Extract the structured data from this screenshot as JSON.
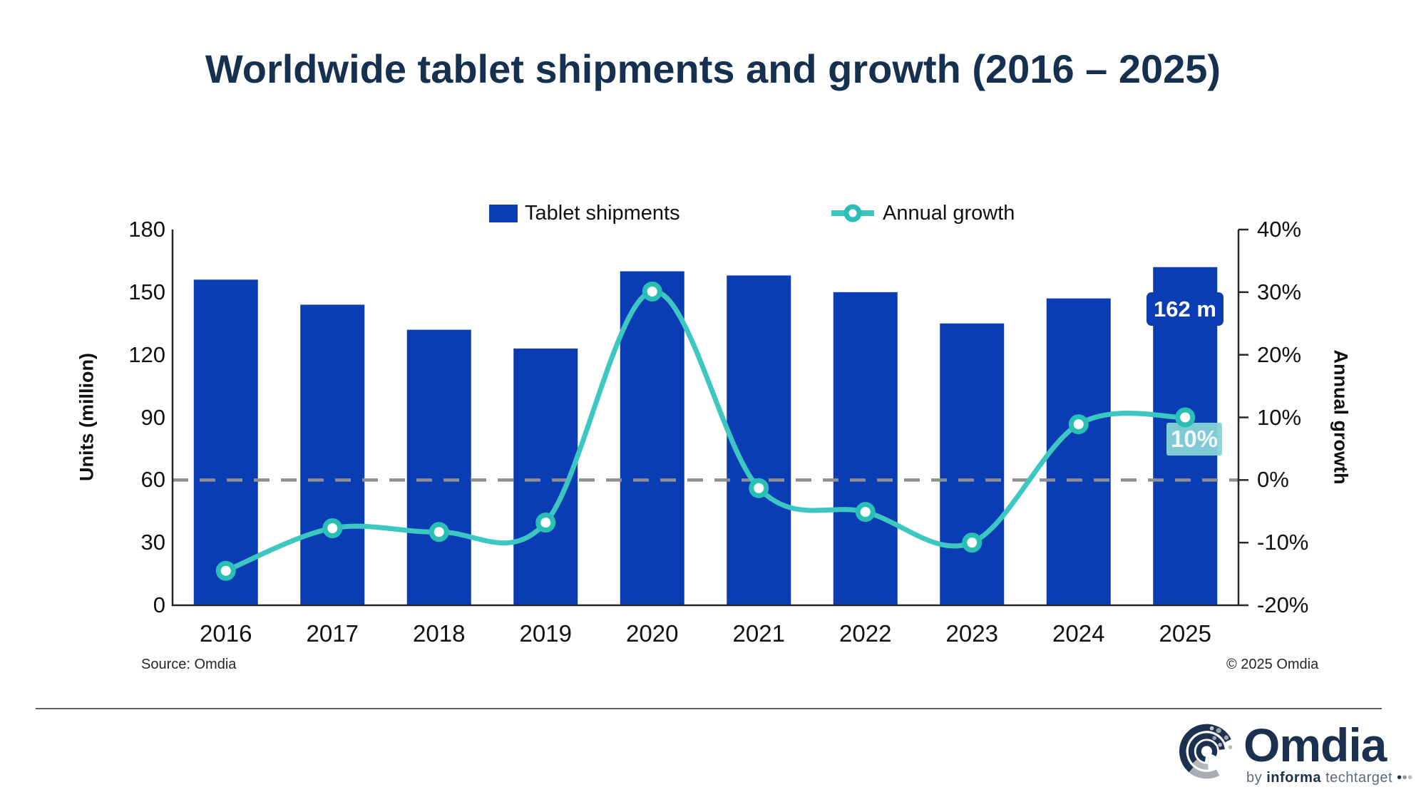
{
  "title": "Worldwide tablet shipments and growth (2016 – 2025)",
  "legend": {
    "shipments_label": "Tablet shipments",
    "growth_label": "Annual growth"
  },
  "axes": {
    "left_title": "Units (million)",
    "right_title": "Annual growth",
    "left_ticks": [
      "180",
      "150",
      "120",
      "90",
      "60",
      "30",
      "0"
    ],
    "right_ticks": [
      "40%",
      "30%",
      "20%",
      "10%",
      "0%",
      "-10%",
      "-20%"
    ],
    "x_ticks": [
      "2016",
      "2017",
      "2018",
      "2019",
      "2020",
      "2021",
      "2022",
      "2023",
      "2024",
      "2025"
    ]
  },
  "chart_data": {
    "type": "combo",
    "categories": [
      "2016",
      "2017",
      "2018",
      "2019",
      "2020",
      "2021",
      "2022",
      "2023",
      "2024",
      "2025"
    ],
    "series": [
      {
        "name": "Tablet shipments",
        "type": "bar",
        "axis": "left",
        "unit": "million units",
        "color": "#0A3DB4",
        "values": [
          156,
          144,
          132,
          123,
          160,
          158,
          150,
          135,
          147,
          162
        ]
      },
      {
        "name": "Annual growth",
        "type": "line",
        "axis": "right",
        "unit": "%",
        "color": "#3CC7C0",
        "marker_ring": "#29BEB6",
        "values": [
          -14.5,
          -7.7,
          -8.3,
          -6.8,
          30.1,
          -1.3,
          -5.1,
          -10.0,
          8.9,
          10.0
        ]
      }
    ],
    "left_axis": {
      "title": "Units (million)",
      "min": 0,
      "max": 180,
      "step": 30
    },
    "right_axis": {
      "title": "Annual growth",
      "min": -20,
      "max": 40,
      "step": 10,
      "format": "percent"
    },
    "zero_line": {
      "axis": "right",
      "value": 0,
      "style": "dashed",
      "color": "#8F8F8F"
    },
    "legend_position": "top",
    "grid": "off"
  },
  "annotations": {
    "shipment_callout": {
      "year": "2025",
      "text": "162 m",
      "bg_color": "#0A3DB4",
      "text_color": "#FFFFFF"
    },
    "growth_callout": {
      "year": "2025",
      "text": "10%",
      "bg_color": "#86D3D6",
      "text_color": "#FFFFFF"
    }
  },
  "footer": {
    "source": "Source: Omdia",
    "copyright": "© 2025 Omdia"
  },
  "logo": {
    "brand": "Omdia",
    "tagline_by": "by",
    "tagline_informa": "informa",
    "tagline_techtarget": "techtarget",
    "navy": "#1C3050"
  }
}
